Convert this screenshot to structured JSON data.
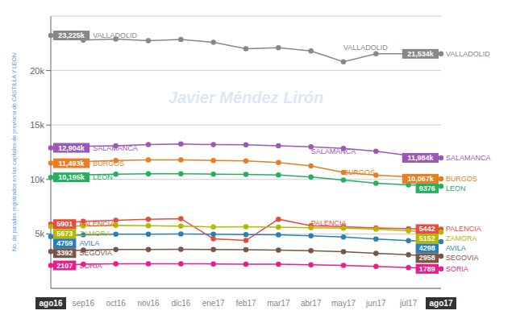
{
  "chart_data": {
    "type": "line",
    "y_label": "No. de parados registrados en las capitales de provincia de CASTILLA Y LEON",
    "categories": [
      "ago16",
      "sep16",
      "oct16",
      "nov16",
      "dic16",
      "ene17",
      "feb17",
      "mar17",
      "abr17",
      "may17",
      "jun17",
      "jul17",
      "ago17"
    ],
    "series": [
      {
        "name": "VALLADOLID",
        "color": "#888888",
        "values": [
          23225,
          22800,
          22900,
          22750,
          22850,
          22600,
          22000,
          22100,
          21800,
          20800,
          21534,
          21534,
          21534
        ],
        "value_labels": [
          "23,225k",
          null,
          null,
          null,
          null,
          null,
          null,
          null,
          null,
          null,
          null,
          null,
          "21,534k"
        ]
      },
      {
        "name": "SALAMANCA",
        "color": "#9b59b6",
        "values": [
          12904,
          13050,
          13100,
          13200,
          13250,
          13200,
          13180,
          13100,
          13000,
          12850,
          12600,
          12200,
          11984
        ],
        "value_labels": [
          "12,904k",
          null,
          null,
          null,
          null,
          null,
          null,
          null,
          null,
          null,
          null,
          null,
          "11,984k"
        ]
      },
      {
        "name": "BURGOS",
        "color": "#e67e22",
        "values": [
          11493,
          11650,
          11750,
          11800,
          11800,
          11750,
          11700,
          11550,
          11250,
          10650,
          10400,
          10250,
          10067
        ],
        "value_labels": [
          "11,493k",
          null,
          null,
          null,
          null,
          null,
          null,
          null,
          null,
          null,
          null,
          null,
          "10,067k"
        ]
      },
      {
        "name": "LEON",
        "color": "#27ae60",
        "values": [
          10195,
          10420,
          10480,
          10520,
          10530,
          10490,
          10460,
          10410,
          10230,
          9950,
          9650,
          9500,
          9376
        ],
        "value_labels": [
          "10,195k",
          null,
          null,
          null,
          null,
          null,
          null,
          null,
          null,
          null,
          null,
          null,
          "9376"
        ]
      },
      {
        "name": "PALENCIA",
        "color": "#e74c3c",
        "values": [
          5901,
          6150,
          6250,
          6350,
          6400,
          4550,
          4400,
          6350,
          5750,
          5650,
          5550,
          5480,
          5442
        ],
        "value_labels": [
          "5901",
          null,
          null,
          null,
          null,
          null,
          null,
          null,
          null,
          null,
          null,
          null,
          "5442"
        ]
      },
      {
        "name": "ZAMORA",
        "color": "#b5b800",
        "values": [
          5673,
          5730,
          5780,
          5750,
          5710,
          5640,
          5650,
          5620,
          5570,
          5530,
          5430,
          5280,
          5152
        ],
        "value_labels": [
          "5673",
          null,
          null,
          null,
          null,
          null,
          null,
          null,
          null,
          null,
          null,
          null,
          "5152"
        ]
      },
      {
        "name": "AVILA",
        "color": "#2980b9",
        "values": [
          4759,
          4920,
          4970,
          4980,
          5000,
          4970,
          4940,
          4910,
          4820,
          4720,
          4530,
          4380,
          4298
        ],
        "value_labels": [
          "4759",
          null,
          null,
          null,
          null,
          null,
          null,
          null,
          null,
          null,
          null,
          null,
          "4298"
        ]
      },
      {
        "name": "SEGOVIA",
        "color": "#795548",
        "values": [
          3392,
          3520,
          3570,
          3570,
          3590,
          3570,
          3545,
          3510,
          3460,
          3360,
          3220,
          3080,
          2958
        ],
        "value_labels": [
          "3392",
          null,
          null,
          null,
          null,
          null,
          null,
          null,
          null,
          null,
          null,
          null,
          "2958"
        ]
      },
      {
        "name": "SORIA",
        "color": "#e91e8c",
        "values": [
          2107,
          2220,
          2250,
          2255,
          2265,
          2245,
          2225,
          2215,
          2160,
          2110,
          2020,
          1900,
          1789
        ],
        "value_labels": [
          "2107",
          null,
          null,
          null,
          null,
          null,
          null,
          null,
          null,
          null,
          null,
          null,
          "1789"
        ]
      }
    ],
    "ylim": [
      0,
      25000
    ],
    "yticks": [
      {
        "value": 5000,
        "label": "5k"
      },
      {
        "value": 10000,
        "label": "10k"
      },
      {
        "value": 15000,
        "label": "15k"
      },
      {
        "value": 20000,
        "label": "20k"
      }
    ],
    "grid": true,
    "annotations": [
      {
        "text": "VALLADOLID",
        "x": "may17",
        "y": 21900,
        "color": "#888888"
      },
      {
        "text": "SALAMANCA",
        "x": "abr17",
        "y": 12350,
        "color": "#9b59b6"
      },
      {
        "text": "BURGOS",
        "x": "may17",
        "y": 10450,
        "color": "#e67e22"
      },
      {
        "text": "PALENCIA",
        "x": "abr17",
        "y": 5800,
        "color": "#e74c3c"
      },
      {
        "text": "Javier Méndez Lirón",
        "color": "#c5d8f0"
      }
    ]
  }
}
